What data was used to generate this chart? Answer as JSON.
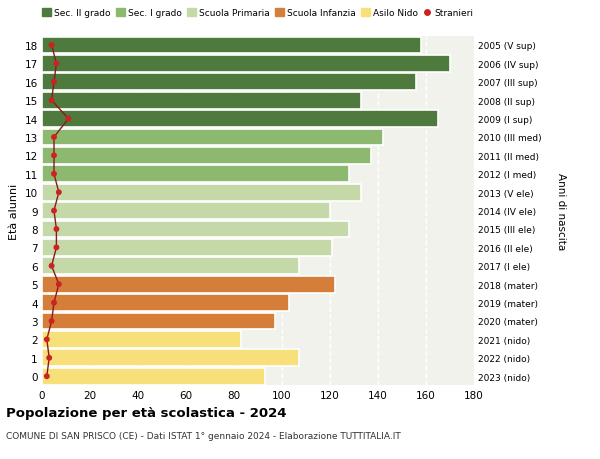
{
  "ages": [
    0,
    1,
    2,
    3,
    4,
    5,
    6,
    7,
    8,
    9,
    10,
    11,
    12,
    13,
    14,
    15,
    16,
    17,
    18
  ],
  "values": [
    93,
    107,
    83,
    97,
    103,
    122,
    107,
    121,
    128,
    120,
    133,
    128,
    137,
    142,
    165,
    133,
    156,
    170,
    158
  ],
  "stranieri": [
    2,
    3,
    2,
    4,
    5,
    7,
    4,
    6,
    6,
    5,
    7,
    5,
    5,
    5,
    11,
    4,
    5,
    6,
    4
  ],
  "right_labels": [
    "2023 (nido)",
    "2022 (nido)",
    "2021 (nido)",
    "2020 (mater)",
    "2019 (mater)",
    "2018 (mater)",
    "2017 (I ele)",
    "2016 (II ele)",
    "2015 (III ele)",
    "2014 (IV ele)",
    "2013 (V ele)",
    "2012 (I med)",
    "2011 (II med)",
    "2010 (III med)",
    "2009 (I sup)",
    "2008 (II sup)",
    "2007 (III sup)",
    "2006 (IV sup)",
    "2005 (V sup)"
  ],
  "bar_colors": [
    "#f7e07a",
    "#f7e07a",
    "#f7e07a",
    "#d47e3a",
    "#d47e3a",
    "#d47e3a",
    "#c5d9a8",
    "#c5d9a8",
    "#c5d9a8",
    "#c5d9a8",
    "#c5d9a8",
    "#8db870",
    "#8db870",
    "#8db870",
    "#4e7a3e",
    "#4e7a3e",
    "#4e7a3e",
    "#4e7a3e",
    "#4e7a3e"
  ],
  "legend_labels": [
    "Sec. II grado",
    "Sec. I grado",
    "Scuola Primaria",
    "Scuola Infanzia",
    "Asilo Nido",
    "Stranieri"
  ],
  "legend_colors": [
    "#4e7a3e",
    "#8db870",
    "#c5d9a8",
    "#d47e3a",
    "#f7e07a",
    "#cc2222"
  ],
  "stranieri_line_color": "#8b1a1a",
  "stranieri_dot_color": "#cc2222",
  "title_bold": "Popolazione per età scolastica - 2024",
  "subtitle": "COMUNE DI SAN PRISCO (CE) - Dati ISTAT 1° gennaio 2024 - Elaborazione TUTTITALIA.IT",
  "ylabel_left": "Età alunni",
  "ylabel_right": "Anni di nascita",
  "xlim": [
    0,
    180
  ],
  "xticks": [
    0,
    20,
    40,
    60,
    80,
    100,
    120,
    140,
    160,
    180
  ],
  "bg_color": "#f2f2ec",
  "grid_color": "#ffffff"
}
